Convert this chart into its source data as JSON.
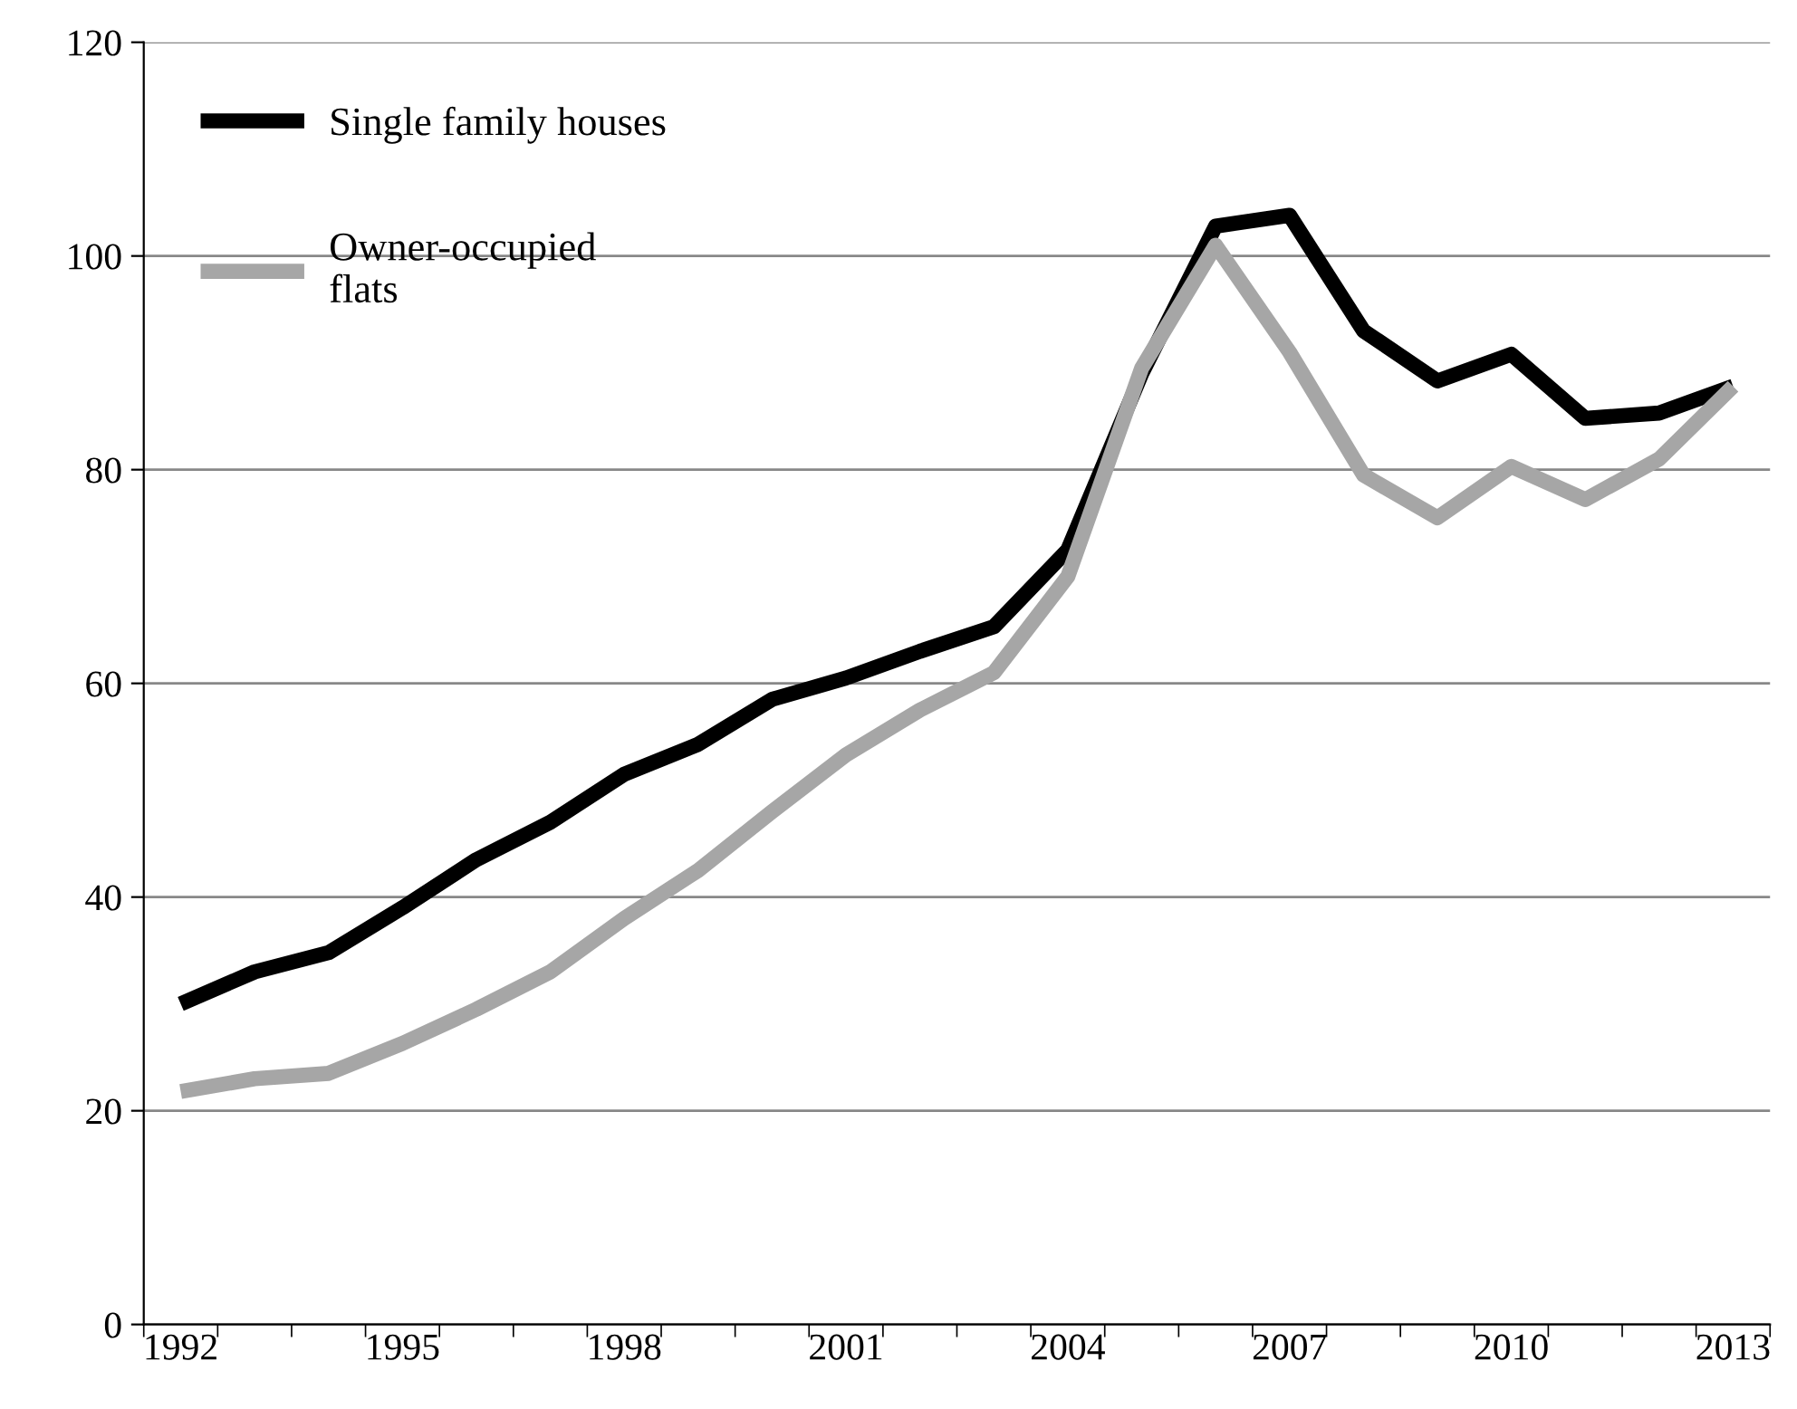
{
  "chart_data": {
    "type": "line",
    "categories": [
      "1992",
      null,
      null,
      "1995",
      null,
      null,
      "1998",
      null,
      null,
      "2001",
      null,
      null,
      "2004",
      null,
      null,
      "2007",
      null,
      null,
      "2010",
      null,
      null,
      "2013"
    ],
    "series": [
      {
        "name": "Single family houses",
        "color": "#000000",
        "values": [
          30,
          33,
          34.8,
          39,
          43.5,
          47,
          51.5,
          54.3,
          58.5,
          60.5,
          63,
          65.3,
          72.5,
          89,
          102.8,
          103.8,
          93,
          88.3,
          90.8,
          84.8,
          85.3,
          87.8
        ]
      },
      {
        "name": "Owner-occupied\nflats",
        "color": "#a6a6a6",
        "values": [
          21.8,
          23,
          23.5,
          26.3,
          29.5,
          33,
          38,
          42.5,
          48,
          53.3,
          57.5,
          61,
          70,
          89.5,
          101,
          91,
          79.5,
          75.5,
          80.3,
          77.2,
          81,
          87.8
        ]
      }
    ],
    "ylim": [
      0,
      120
    ],
    "yticks": [
      0,
      20,
      40,
      60,
      80,
      100,
      120
    ],
    "grid": "y",
    "legend": "top left",
    "marker": "none",
    "line_style": "solid"
  }
}
